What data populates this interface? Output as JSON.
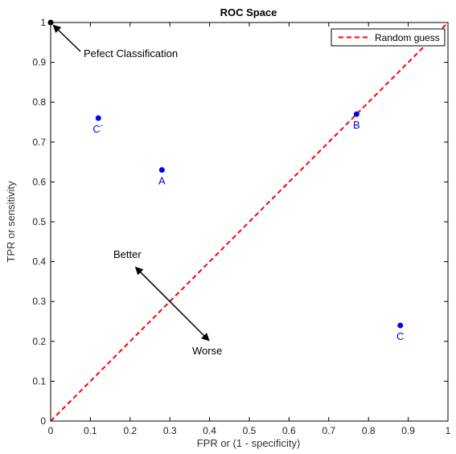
{
  "chart_data": {
    "type": "scatter",
    "title": "ROC Space",
    "xlabel": "FPR or (1 - specificity)",
    "ylabel": "TPR or sensitivity",
    "xlim": [
      0,
      1
    ],
    "ylim": [
      0,
      1
    ],
    "xticks": [
      "0",
      "0.1",
      "0.2",
      "0.3",
      "0.4",
      "0.5",
      "0.6",
      "0.7",
      "0.8",
      "0.9",
      "1"
    ],
    "yticks": [
      "0",
      "0.1",
      "0.2",
      "0.3",
      "0.4",
      "0.5",
      "0.6",
      "0.7",
      "0.8",
      "0.9",
      "1"
    ],
    "grid": false,
    "legend": {
      "placement": "top-right",
      "entries": [
        "Random guess"
      ]
    },
    "points": [
      {
        "label": "A",
        "x": 0.28,
        "y": 0.63
      },
      {
        "label": "B",
        "x": 0.77,
        "y": 0.77
      },
      {
        "label": "C",
        "x": 0.88,
        "y": 0.24
      },
      {
        "label": "C´",
        "x": 0.12,
        "y": 0.76
      }
    ],
    "perfect_point": {
      "x": 0,
      "y": 1
    },
    "reference_line": {
      "name": "Random guess",
      "x": [
        0,
        1
      ],
      "y": [
        0,
        1
      ],
      "style": "dashed"
    },
    "annotations": {
      "perfect": "Pefect Classification",
      "better": "Better",
      "worse": "Worse"
    },
    "colors": {
      "points": "#0000ee",
      "reference_line": "#ff0000",
      "perfect_point": "#000000"
    }
  }
}
